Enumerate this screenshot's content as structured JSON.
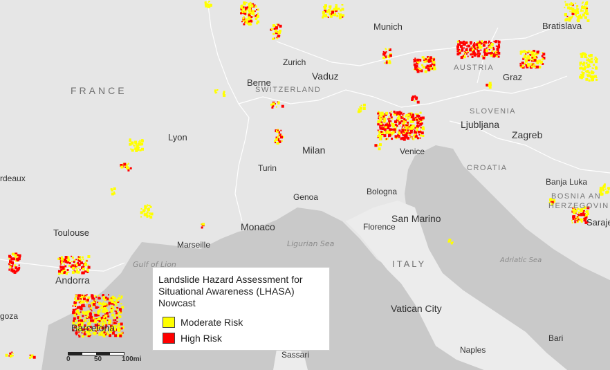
{
  "map": {
    "colors": {
      "water": "#c9c9c9",
      "land": "#ececec",
      "border": "#ffffff",
      "moderate": "#ffff00",
      "high": "#ff0000"
    },
    "cities": {
      "munich": "Munich",
      "bratislava": "Bratislava",
      "zurich": "Zurich",
      "vaduz": "Vaduz",
      "berne": "Berne",
      "graz": "Graz",
      "lyon": "Lyon",
      "ljubljana": "Ljubljana",
      "zagreb": "Zagreb",
      "milan": "Milan",
      "venice": "Venice",
      "turin": "Turin",
      "bordeaux": "rdeaux",
      "banja_luka": "Banja Luka",
      "genoa": "Genoa",
      "bologna": "Bologna",
      "sarajevo": "Saraje",
      "toulouse": "Toulouse",
      "monaco": "Monaco",
      "san_marino": "San Marino",
      "florence": "Florence",
      "marseille": "Marseille",
      "andorra": "Andorra",
      "vatican_city": "Vatican City",
      "zaragoza": "goza",
      "barcelona": "Barcelona",
      "bari": "Bari",
      "naples": "Naples",
      "sassari": "Sassari"
    },
    "countries": {
      "france": "FRANCE",
      "switzerland": "SWITZERLAND",
      "austria": "AUSTRIA",
      "slovenia": "SLOVENIA",
      "croatia": "CROATIA",
      "bosnia_line1": "BOSNIA AN",
      "bosnia_line2": "HERZEGOVIN",
      "italy": "ITALY"
    },
    "seas": {
      "ligurian": "Ligurian Sea",
      "gulf_of_lion": "Gulf of Lion",
      "adriatic": "Adriatic Sea"
    }
  },
  "legend": {
    "title": "Landslide Hazard Assessment for Situational Awareness (LHASA) Nowcast",
    "items": [
      {
        "label": "Moderate Risk",
        "color": "#ffff00"
      },
      {
        "label": "High Risk",
        "color": "#ff0000"
      }
    ]
  },
  "scale": {
    "labels": [
      "0",
      "50",
      "100mi"
    ]
  }
}
